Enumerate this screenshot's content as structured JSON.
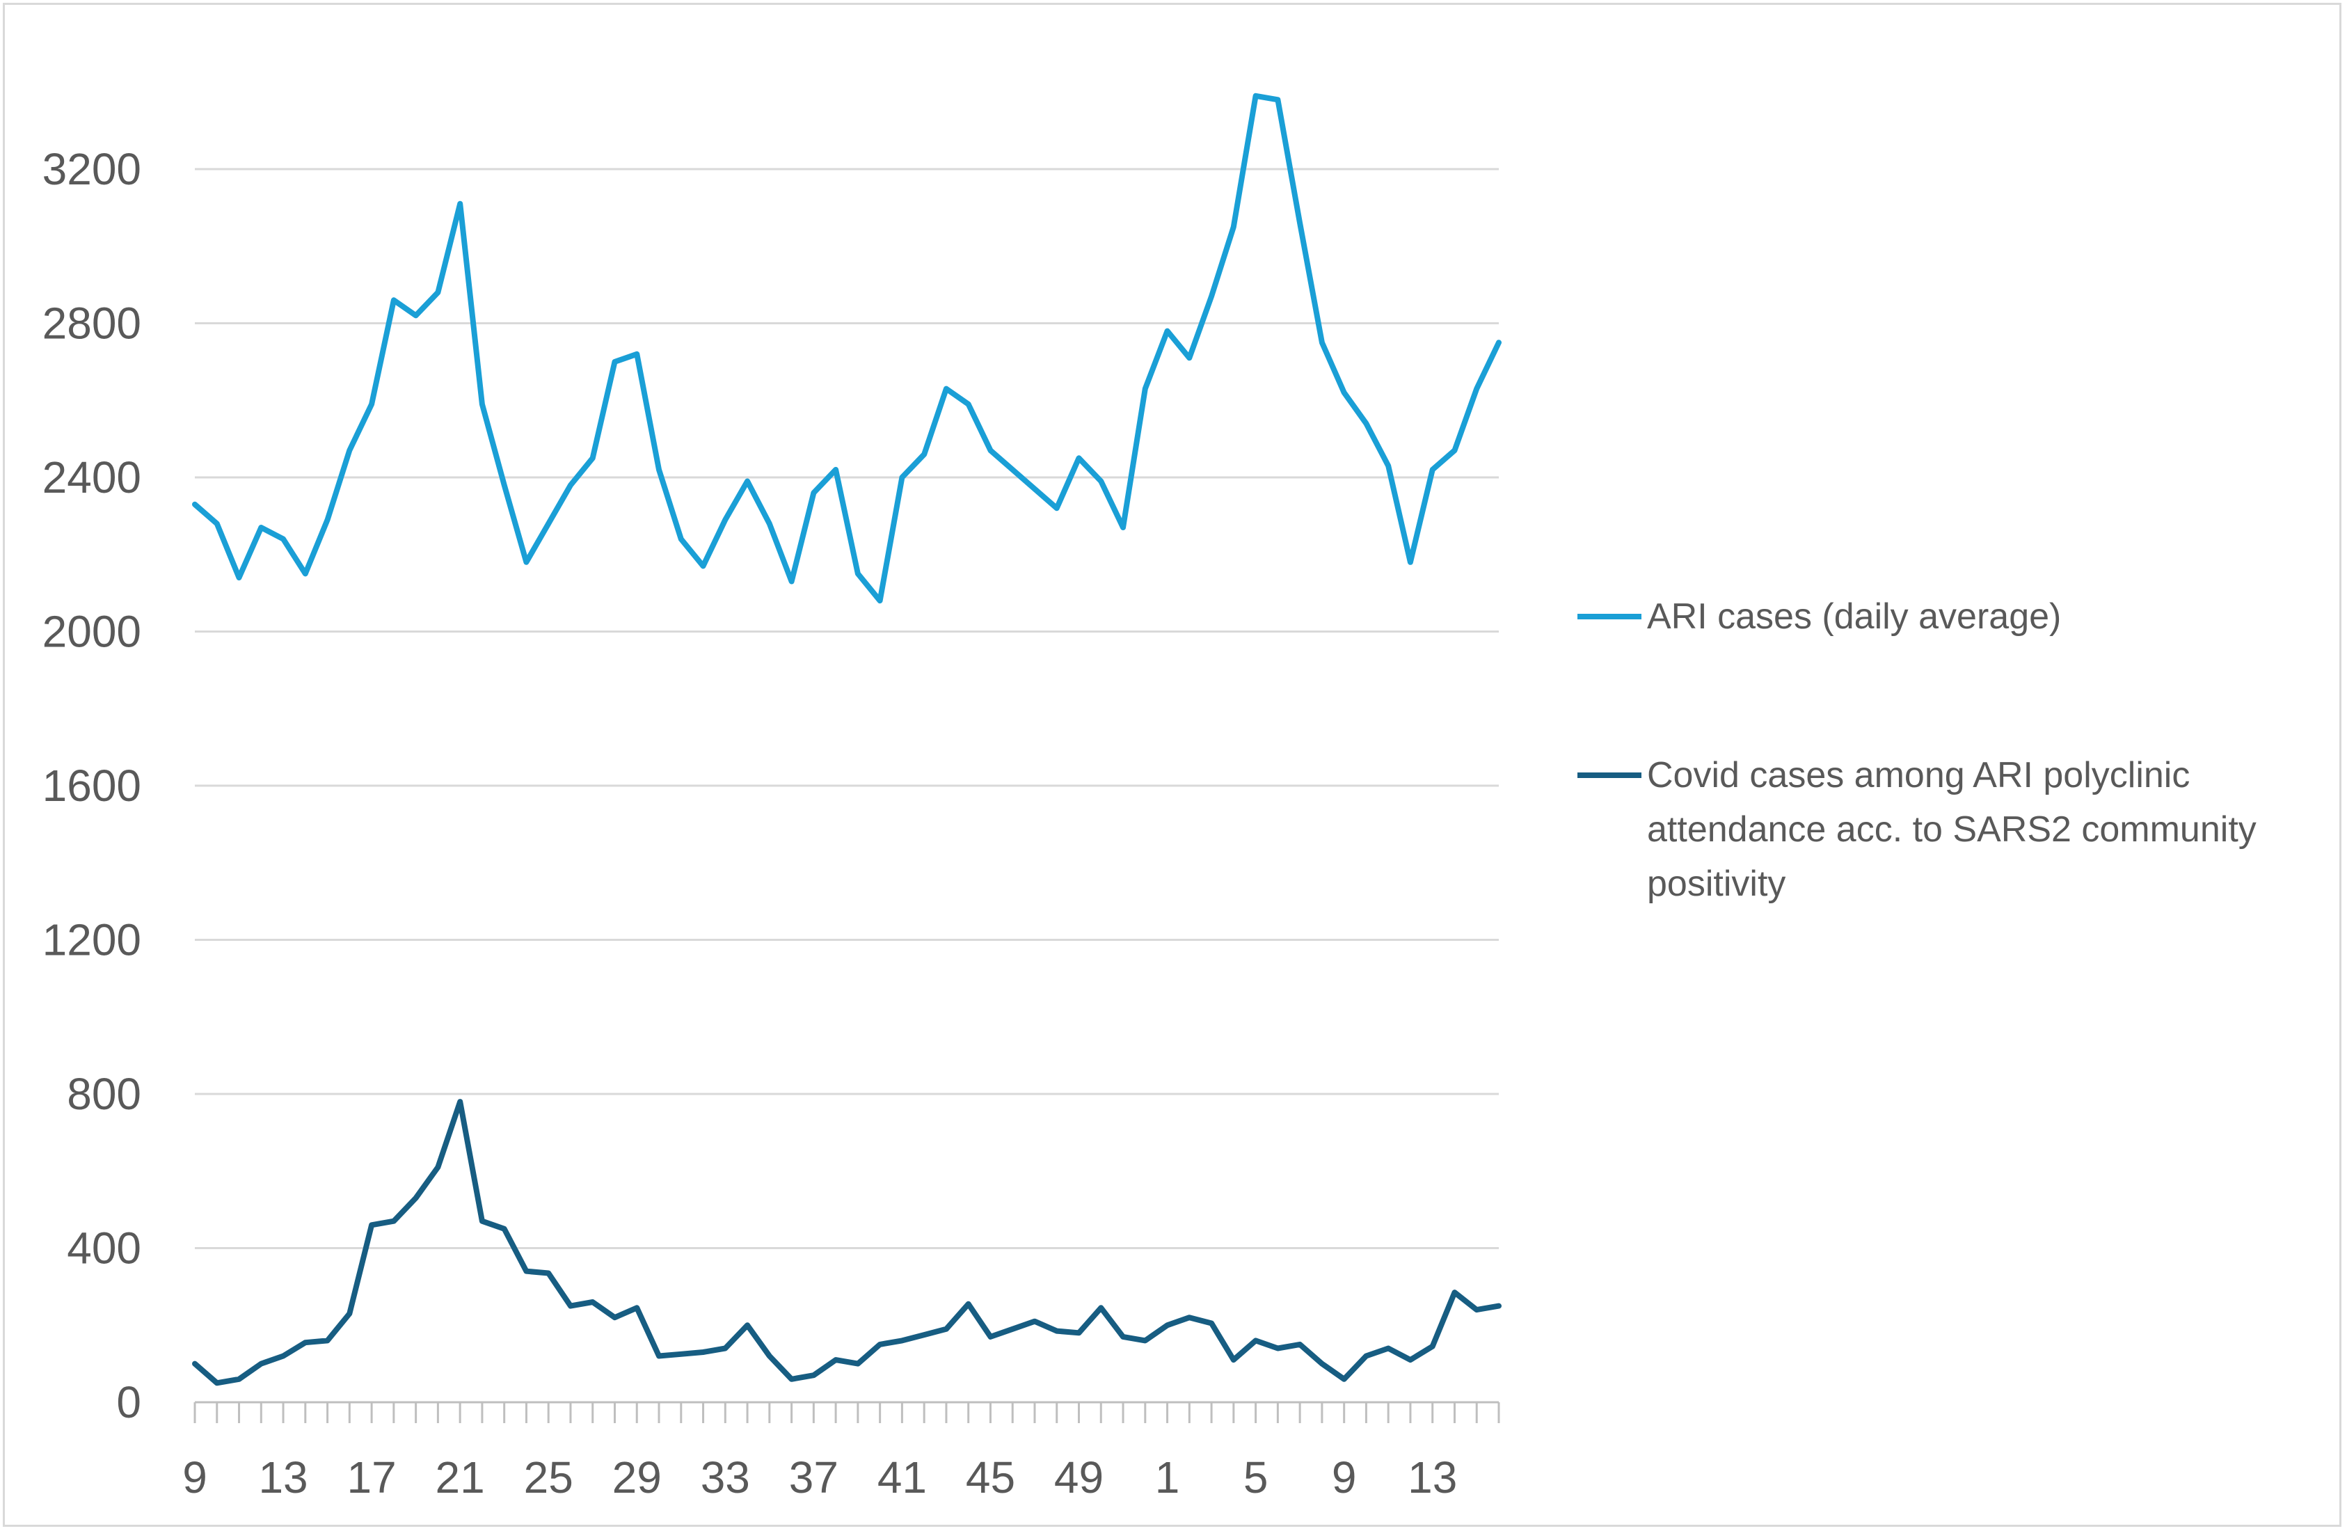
{
  "chart_data": {
    "type": "line",
    "x": [
      "9",
      "10",
      "11",
      "12",
      "13",
      "14",
      "15",
      "16",
      "17",
      "18",
      "19",
      "20",
      "21",
      "22",
      "23",
      "24",
      "25",
      "26",
      "27",
      "28",
      "29",
      "30",
      "31",
      "32",
      "33",
      "34",
      "35",
      "36",
      "37",
      "38",
      "39",
      "40",
      "41",
      "42",
      "43",
      "44",
      "45",
      "46",
      "47",
      "48",
      "49",
      "50",
      "51",
      "52",
      "1",
      "2",
      "3",
      "4",
      "5",
      "6",
      "7",
      "8",
      "9",
      "10",
      "11",
      "12",
      "13",
      "14",
      "15",
      "16"
    ],
    "x_tick_labels": [
      "9",
      "13",
      "17",
      "21",
      "25",
      "29",
      "33",
      "37",
      "41",
      "45",
      "49",
      "1",
      "5",
      "9",
      "13"
    ],
    "y_ticks": [
      "0",
      "400",
      "800",
      "1200",
      "1600",
      "2000",
      "2400",
      "2800",
      "3200"
    ],
    "ylim": [
      0,
      3200
    ],
    "grid": true,
    "legend_position": "right",
    "series": [
      {
        "name": "ARI cases (daily average)",
        "color": "#1a9fd6",
        "values": [
          2330,
          2280,
          2140,
          2270,
          2240,
          2150,
          2290,
          2470,
          2590,
          2860,
          2820,
          2880,
          3110,
          2590,
          2380,
          2180,
          2280,
          2380,
          2450,
          2700,
          2720,
          2420,
          2240,
          2170,
          2290,
          2390,
          2280,
          2130,
          2360,
          2420,
          2150,
          2080,
          2400,
          2460,
          2630,
          2590,
          2470,
          2420,
          2370,
          2320,
          2450,
          2390,
          2270,
          2630,
          2780,
          2710,
          2870,
          3050,
          3390,
          3380,
          3060,
          2750,
          2620,
          2540,
          2430,
          2180,
          2420,
          2470,
          2630,
          2750
        ]
      },
      {
        "name": "Covid cases among ARI polyclinic attendance acc. to SARS2 community positivity",
        "color": "#175d82",
        "values": [
          100,
          50,
          60,
          100,
          120,
          155,
          160,
          230,
          460,
          470,
          530,
          610,
          780,
          470,
          450,
          340,
          335,
          250,
          260,
          220,
          245,
          120,
          125,
          130,
          140,
          200,
          120,
          60,
          70,
          110,
          100,
          150,
          160,
          175,
          190,
          255,
          170,
          190,
          210,
          185,
          180,
          245,
          170,
          160,
          200,
          220,
          205,
          110,
          160,
          140,
          150,
          100,
          60,
          120,
          140,
          110,
          145,
          285,
          240,
          250
        ]
      }
    ]
  }
}
